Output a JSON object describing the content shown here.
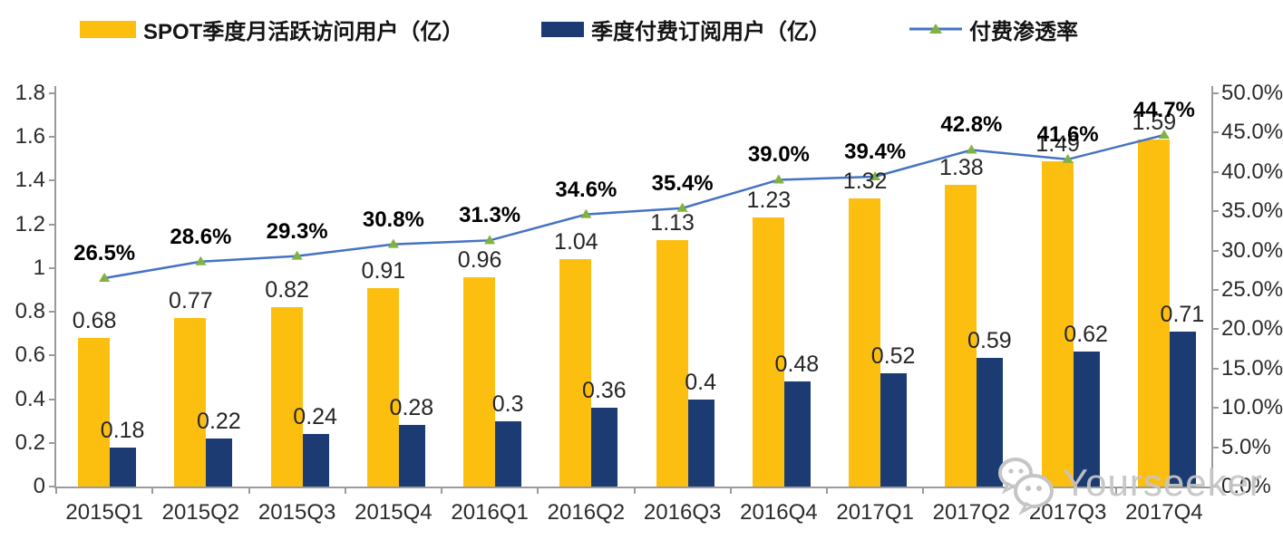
{
  "chart_data": {
    "type": "combo-bar-line",
    "title": "",
    "categories": [
      "2015Q1",
      "2015Q2",
      "2015Q3",
      "2015Q4",
      "2016Q1",
      "2016Q2",
      "2016Q3",
      "2016Q4",
      "2017Q1",
      "2017Q2",
      "2017Q3",
      "2017Q4"
    ],
    "series": [
      {
        "name": "SPOT季度月活跃访问用户（亿）",
        "type": "bar",
        "axis": "left",
        "color": "#FCBF10",
        "values": [
          0.68,
          0.77,
          0.82,
          0.91,
          0.96,
          1.04,
          1.13,
          1.23,
          1.32,
          1.38,
          1.49,
          1.59
        ],
        "labels": [
          "0.68",
          "0.77",
          "0.82",
          "0.91",
          "0.96",
          "1.04",
          "1.13",
          "1.23",
          "1.32",
          "1.38",
          "1.49",
          "1.59"
        ]
      },
      {
        "name": "季度付费订阅用户（亿）",
        "type": "bar",
        "axis": "left",
        "color": "#1C3B73",
        "values": [
          0.18,
          0.22,
          0.24,
          0.28,
          0.3,
          0.36,
          0.4,
          0.48,
          0.52,
          0.59,
          0.62,
          0.71
        ],
        "labels": [
          "0.18",
          "0.22",
          "0.24",
          "0.28",
          "0.3",
          "0.36",
          "0.4",
          "0.48",
          "0.52",
          "0.59",
          "0.62",
          "0.71"
        ]
      },
      {
        "name": "付费渗透率",
        "type": "line",
        "axis": "right",
        "color": "#4472C4",
        "marker": "triangle",
        "marker_color": "#7FB241",
        "values": [
          26.5,
          28.6,
          29.3,
          30.8,
          31.3,
          34.6,
          35.4,
          39.0,
          39.4,
          42.8,
          41.6,
          44.7
        ],
        "labels": [
          "26.5%",
          "28.6%",
          "29.3%",
          "30.8%",
          "31.3%",
          "34.6%",
          "35.4%",
          "39.0%",
          "39.4%",
          "42.8%",
          "41.6%",
          "44.7%"
        ]
      }
    ],
    "left_axis": {
      "min": 0,
      "max": 1.8,
      "tick_labels": [
        "0",
        "0.2",
        "0.4",
        "0.6",
        "0.8",
        "1",
        "1.2",
        "1.4",
        "1.6",
        "1.8"
      ]
    },
    "right_axis": {
      "min": 0,
      "max": 50,
      "tick_labels": [
        "0.0%",
        "5.0%",
        "10.0%",
        "15.0%",
        "20.0%",
        "25.0%",
        "30.0%",
        "35.0%",
        "40.0%",
        "45.0%",
        "50.0%"
      ]
    },
    "grid": false,
    "legend_position": "top"
  },
  "watermark": {
    "text": "Yourseeker",
    "icon": "wechat-icon"
  },
  "colors": {
    "axis": "#9b9b9b",
    "bar_label": "#262626",
    "pct_label": "#000000",
    "watermark": "#C5C5C5"
  }
}
